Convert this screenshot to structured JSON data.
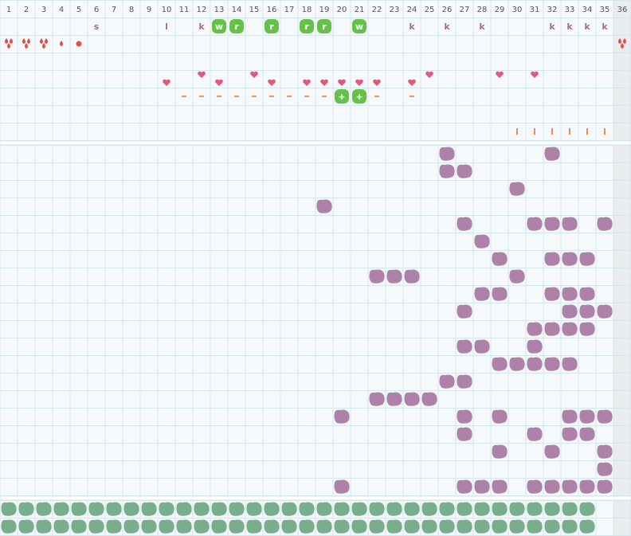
{
  "columns": [
    1,
    2,
    3,
    4,
    5,
    6,
    7,
    8,
    9,
    10,
    11,
    12,
    13,
    14,
    15,
    16,
    17,
    18,
    19,
    20,
    21,
    22,
    23,
    24,
    25,
    26,
    27,
    28,
    29,
    30,
    31,
    32,
    33,
    34,
    35,
    36
  ],
  "letter_row": [
    null,
    null,
    null,
    null,
    null,
    "s",
    null,
    null,
    null,
    "l",
    null,
    "k",
    "w",
    "r",
    null,
    "r",
    null,
    "r",
    "r",
    null,
    "w",
    null,
    null,
    "k",
    null,
    "k",
    null,
    "k",
    null,
    null,
    null,
    "k",
    "k",
    "k",
    "k",
    null
  ],
  "plus_row": [
    null,
    null,
    null,
    null,
    null,
    null,
    null,
    null,
    null,
    null,
    null,
    null,
    null,
    null,
    null,
    null,
    null,
    null,
    null,
    "+",
    "+",
    null,
    null,
    null,
    null,
    null,
    null,
    null,
    null,
    null,
    null,
    null,
    null,
    null,
    null,
    null
  ]
}
